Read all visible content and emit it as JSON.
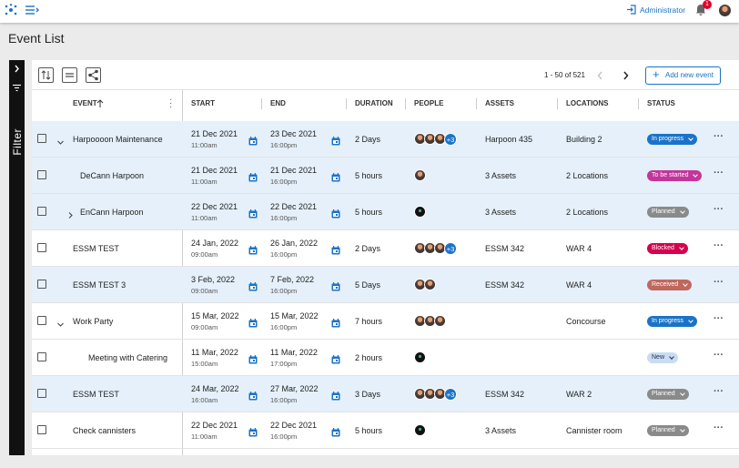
{
  "header": {
    "user": "Administrator",
    "notifications": "1"
  },
  "title": "Event List",
  "sidebar": {
    "label": "Filter"
  },
  "toolbar": {
    "pagination": "1 - 50 of 521",
    "add_button": "Add new event"
  },
  "table": {
    "columns": [
      "EVENT",
      "START",
      "END",
      "DURATION",
      "PEOPLE",
      "ASSETS",
      "LOCATIONS",
      "STATUS"
    ],
    "rows": [
      {
        "event": "Harpoooon Maintenance",
        "start_date": "21 Dec 2021",
        "start_time": "11:00am",
        "end_date": "23 Dec 2021",
        "end_time": "16:00pm",
        "duration": "2 Days",
        "more": "+3",
        "assets": "Harpoon 435",
        "locations": "Building 2",
        "status": "In progress",
        "status_color": "#1a73c8"
      },
      {
        "event": "DeCann Harpoon",
        "start_date": "21 Dec 2021",
        "start_time": "11:00am",
        "end_date": "21 Dec 2021",
        "end_time": "16:00pm",
        "duration": "5 hours",
        "assets": "3 Assets",
        "locations": "2 Locations",
        "status": "To be started",
        "status_color": "#c2369b"
      },
      {
        "event": "EnCann Harpoon",
        "start_date": "22 Dec 2021",
        "start_time": "11:00am",
        "end_date": "22 Dec 2021",
        "end_time": "16:00pm",
        "duration": "5 hours",
        "assets": "3 Assets",
        "locations": "2 Locations",
        "status": "Planned",
        "status_color": "#8a8a8a"
      },
      {
        "event": "ESSM TEST",
        "start_date": "24 Jan, 2022",
        "start_time": "09:00am",
        "end_date": "26 Jan, 2022",
        "end_time": "16:00pm",
        "duration": "2 Days",
        "more": "+3",
        "assets": "ESSM 342",
        "locations": "WAR 4",
        "status": "Blocked",
        "status_color": "#d6004f"
      },
      {
        "event": "ESSM TEST 3",
        "start_date": "3 Feb, 2022",
        "start_time": "09:00am",
        "end_date": "7 Feb, 2022",
        "end_time": "16:00pm",
        "duration": "5 Days",
        "assets": "ESSM 342",
        "locations": "WAR 4",
        "status": "Received",
        "status_color": "#c0675e"
      },
      {
        "event": "Work Party",
        "start_date": "15 Mar, 2022",
        "start_time": "09:00am",
        "end_date": "15 Mar, 2022",
        "end_time": "16:00pm",
        "duration": "7 hours",
        "locations": "Concourse",
        "status": "In progress",
        "status_color": "#1a73c8"
      },
      {
        "event": "Meeting with  Catering",
        "start_date": "11 Mar, 2022",
        "start_time": "15:00am",
        "end_date": "11 Mar, 2022",
        "end_time": "17:00pm",
        "duration": "2 hours",
        "status": "New",
        "status_color": "#c9dcf3"
      },
      {
        "event": "ESSM TEST",
        "start_date": "24 Mar, 2022",
        "start_time": "16:00am",
        "end_date": "27 Mar, 2022",
        "end_time": "16:00pm",
        "duration": "3 Days",
        "more": "+3",
        "assets": "ESSM 342",
        "locations": "WAR 2",
        "status": "Planned",
        "status_color": "#8a8a8a"
      },
      {
        "event": "Check cannisters",
        "start_date": "22 Dec 2021",
        "start_time": "11:00am",
        "end_date": "22 Dec 2021",
        "end_time": "16:00pm",
        "duration": "5 hours",
        "assets": "3 Assets",
        "locations": "Cannister room",
        "status": "Planned",
        "status_color": "#8a8a8a"
      }
    ]
  }
}
